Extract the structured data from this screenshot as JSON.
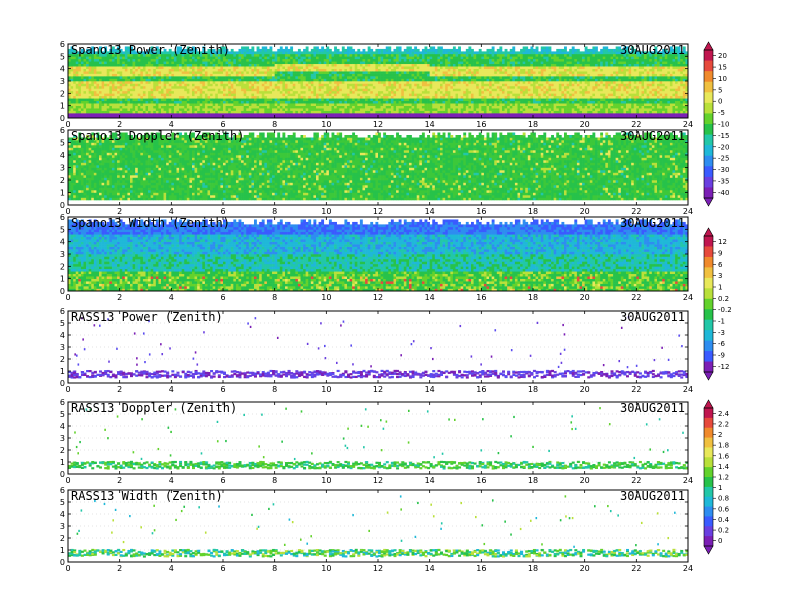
{
  "colors": {
    "scale": [
      "#7b1fb5",
      "#6a3fe0",
      "#3a5bff",
      "#2e8df0",
      "#1fb8d8",
      "#22c7a8",
      "#27c24a",
      "#63d22c",
      "#b9e03a",
      "#e8e85a",
      "#f0c040",
      "#f08a2c",
      "#e64a3c",
      "#cc1f5a"
    ],
    "axis": "#000000",
    "grid": "#c8c8c8"
  },
  "chart_data": [
    {
      "type": "heatmap",
      "title": "Spano13 Power (Zenith)",
      "date_label": "30AUG2011",
      "x_ticks": [
        0,
        2,
        4,
        6,
        8,
        10,
        12,
        14,
        16,
        18,
        20,
        22,
        24
      ],
      "xlim": [
        0,
        24
      ],
      "y_ticks": [
        0,
        1,
        2,
        3,
        4,
        5,
        6
      ],
      "ylim": [
        0,
        6
      ],
      "colorbar": "cb1",
      "pattern": "power"
    },
    {
      "type": "heatmap",
      "title": "Spano13 Doppler (Zenith)",
      "date_label": "30AUG2011",
      "x_ticks": [
        0,
        2,
        4,
        6,
        8,
        10,
        12,
        14,
        16,
        18,
        20,
        22,
        24
      ],
      "xlim": [
        0,
        24
      ],
      "y_ticks": [
        0,
        1,
        2,
        3,
        4,
        5,
        6
      ],
      "ylim": [
        0,
        6
      ],
      "colorbar": "cb1",
      "pattern": "doppler"
    },
    {
      "type": "heatmap",
      "title": "Spano13 Width (Zenith)",
      "date_label": "30AUG2011",
      "x_ticks": [
        0,
        2,
        4,
        6,
        8,
        10,
        12,
        14,
        16,
        18,
        20,
        22,
        24
      ],
      "xlim": [
        0,
        24
      ],
      "y_ticks": [
        0,
        1,
        2,
        3,
        4,
        5,
        6
      ],
      "ylim": [
        0,
        6
      ],
      "colorbar": "cb2",
      "pattern": "width"
    },
    {
      "type": "heatmap",
      "title": "RASS13 Power (Zenith)",
      "date_label": "30AUG2011",
      "x_ticks": [
        0,
        2,
        4,
        6,
        8,
        10,
        12,
        14,
        16,
        18,
        20,
        22,
        24
      ],
      "xlim": [
        0,
        24
      ],
      "y_ticks": [
        0,
        1,
        2,
        3,
        4,
        5,
        6
      ],
      "ylim": [
        0,
        6
      ],
      "colorbar": "cb2",
      "pattern": "rass_power"
    },
    {
      "type": "heatmap",
      "title": "RASS13 Doppler (Zenith)",
      "date_label": "30AUG2011",
      "x_ticks": [
        0,
        2,
        4,
        6,
        8,
        10,
        12,
        14,
        16,
        18,
        20,
        22,
        24
      ],
      "xlim": [
        0,
        24
      ],
      "y_ticks": [
        0,
        1,
        2,
        3,
        4,
        5,
        6
      ],
      "ylim": [
        0,
        6
      ],
      "colorbar": "cb3",
      "pattern": "rass_doppler"
    },
    {
      "type": "heatmap",
      "title": "RASS13 Width (Zenith)",
      "date_label": "30AUG2011",
      "x_ticks": [
        0,
        2,
        4,
        6,
        8,
        10,
        12,
        14,
        16,
        18,
        20,
        22,
        24
      ],
      "xlim": [
        0,
        24
      ],
      "y_ticks": [
        0,
        1,
        2,
        3,
        4,
        5,
        6
      ],
      "ylim": [
        0,
        6
      ],
      "colorbar": "cb3",
      "pattern": "rass_width"
    }
  ],
  "colorbars": {
    "cb1": {
      "labels": [
        "20",
        "15",
        "10",
        "5",
        "0",
        "-5",
        "-10",
        "-15",
        "-20",
        "-25",
        "-30",
        "-35",
        "-40"
      ]
    },
    "cb2": {
      "labels": [
        "12",
        "9",
        "6",
        "3",
        "1",
        "0.2",
        "-0.2",
        "-1",
        "-3",
        "-6",
        "-9",
        "-12"
      ]
    },
    "cb3": {
      "labels": [
        "2.4",
        "2.2",
        "2",
        "1.8",
        "1.6",
        "1.4",
        "1.2",
        "1",
        "0.8",
        "0.6",
        "0.4",
        "0.2",
        "0"
      ]
    }
  }
}
